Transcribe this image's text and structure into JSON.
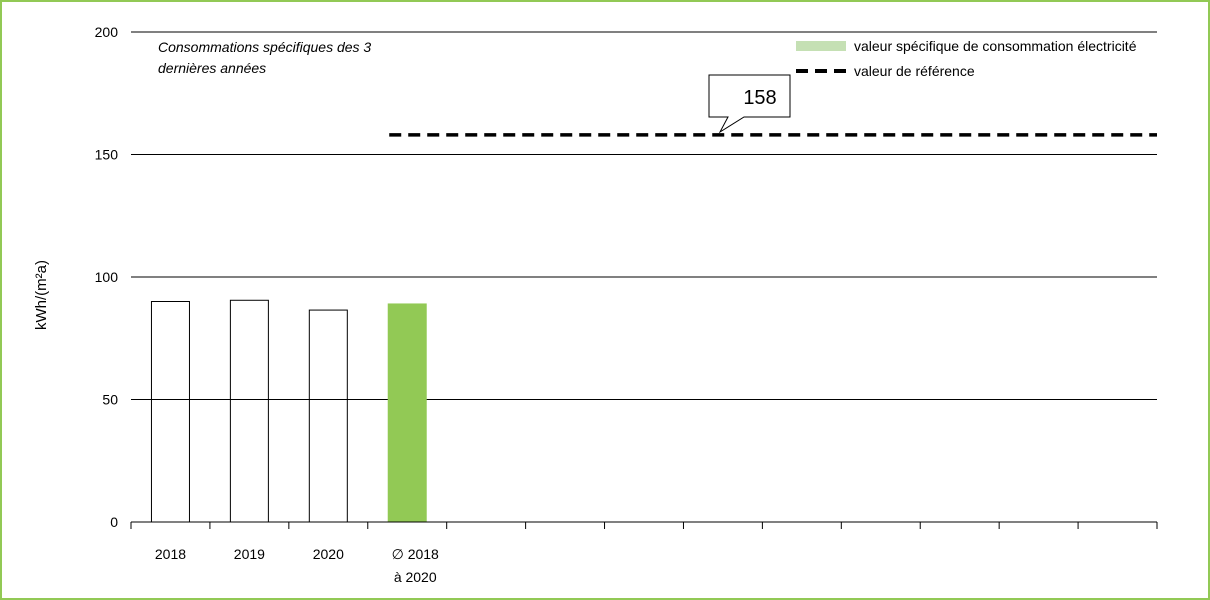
{
  "chart_data": {
    "type": "bar",
    "ylabel": "kWh/(m²a)",
    "ylim": [
      0,
      200
    ],
    "yticks": [
      0,
      50,
      100,
      150,
      200
    ],
    "grid": true,
    "categories": [
      {
        "line1": "2018",
        "line2": ""
      },
      {
        "line1": "2019",
        "line2": ""
      },
      {
        "line1": "2020",
        "line2": ""
      },
      {
        "line1": "∅ 2018",
        "line2": "à 2020"
      }
    ],
    "slots": 13,
    "series": [
      {
        "name": "valeur spécifique de consommation électricité",
        "values": [
          90,
          90.5,
          86.5,
          89
        ],
        "styles": [
          "outline",
          "outline",
          "outline",
          "filled"
        ]
      },
      {
        "name": "valeur de référence",
        "type": "reference-line",
        "value": 158,
        "start_slot": 3.5
      }
    ],
    "annotation": {
      "text": "Consommations spécifiques des 3",
      "text2": "dernières années"
    },
    "reference_label": "158",
    "legend_position": "top-right",
    "colors": {
      "frame": "#92c955",
      "bar_fill": "#92c955",
      "legend_swatch": "#c5e0b4"
    }
  }
}
